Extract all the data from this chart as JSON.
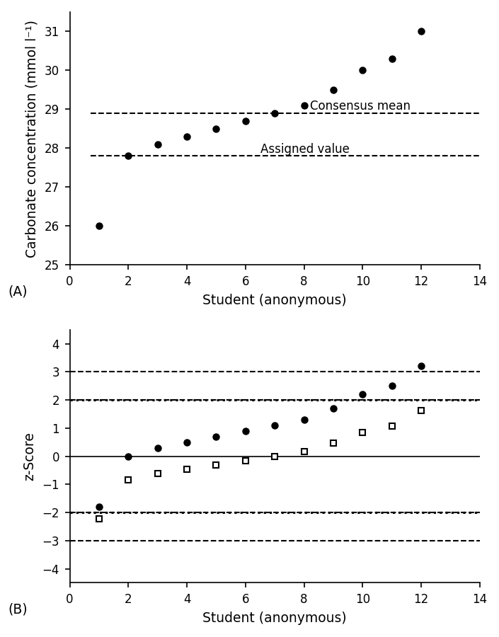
{
  "figsize": [
    4.7,
    6.0
  ],
  "dpi": 150,
  "A": {
    "xlabel": "Student (anonymous)",
    "ylabel": "Carbonate concentration (mmol l⁻¹)",
    "xlim": [
      0,
      14
    ],
    "ylim": [
      25,
      31.5
    ],
    "yticks": [
      25,
      26,
      27,
      28,
      29,
      30,
      31
    ],
    "xticks": [
      0,
      2,
      4,
      6,
      8,
      10,
      12,
      14
    ],
    "assigned_value": 27.8,
    "consensus_mean": 28.9,
    "label_assigned": "Assigned value",
    "label_consensus": "Consensus mean",
    "data_x": [
      1,
      2,
      3,
      4,
      5,
      6,
      7,
      8,
      9,
      10,
      11,
      12
    ],
    "data_y": [
      26.0,
      27.8,
      28.1,
      28.3,
      28.5,
      28.7,
      28.9,
      29.1,
      29.5,
      30.0,
      30.3,
      31.0
    ],
    "panel_label": "(A)"
  },
  "B": {
    "xlabel": "Student (anonymous)",
    "ylabel": "z-Score",
    "xlim": [
      0,
      14
    ],
    "ylim": [
      -4.5,
      4.5
    ],
    "yticks": [
      -4,
      -3,
      -2,
      -1,
      0,
      1,
      2,
      3,
      4
    ],
    "xticks": [
      0,
      2,
      4,
      6,
      8,
      10,
      12,
      14
    ],
    "assigned_value": 27.8,
    "consensus_mean": 28.9,
    "target_sd": 1.0,
    "sample_sd": 1.3,
    "data_x": [
      1,
      2,
      3,
      4,
      5,
      6,
      7,
      8,
      9,
      10,
      11,
      12
    ],
    "data_y_raw": [
      26.0,
      27.8,
      28.1,
      28.3,
      28.5,
      28.7,
      28.9,
      29.1,
      29.5,
      30.0,
      30.3,
      31.0
    ],
    "panel_label": "(B)",
    "hlines_pos": [
      2,
      3,
      -2,
      -3
    ],
    "hline_styles_pos": [
      "dashed",
      "dashed",
      "dotted",
      "dashed"
    ],
    "zero_line": true
  },
  "font_size": 9,
  "label_font_size": 8,
  "tick_font_size": 8
}
